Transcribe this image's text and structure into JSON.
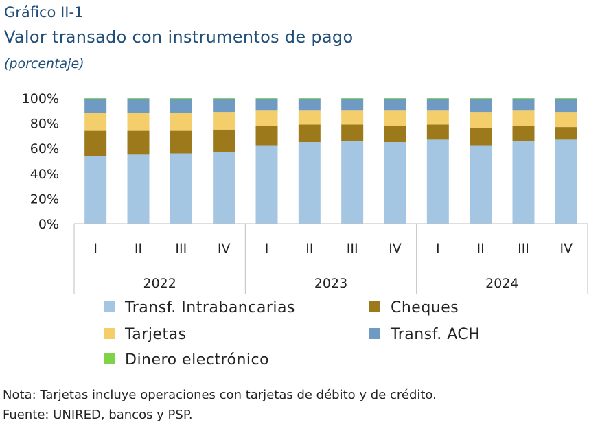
{
  "header": {
    "label": "Gráfico II-1",
    "title": "Valor transado con instrumentos de pago",
    "subtitle": "(porcentaje)"
  },
  "notes": {
    "note": "Nota: Tarjetas incluye operaciones con tarjetas de débito y de crédito.",
    "source": "Fuente: UNIRED, bancos y PSP."
  },
  "chart_data": {
    "type": "bar",
    "stacked": true,
    "categories": [
      "I",
      "II",
      "III",
      "IV",
      "I",
      "II",
      "III",
      "IV",
      "I",
      "II",
      "III",
      "IV"
    ],
    "groups": [
      {
        "label": "2022",
        "count": 4
      },
      {
        "label": "2023",
        "count": 4
      },
      {
        "label": "2024",
        "count": 4
      }
    ],
    "y_ticks": [
      "0%",
      "20%",
      "40%",
      "60%",
      "80%",
      "100%"
    ],
    "ylim": [
      0,
      100
    ],
    "series": [
      {
        "name": "Transf. Intrabancarias",
        "color": "#a4c6e2",
        "values": [
          54,
          55,
          56,
          57,
          62,
          65,
          66,
          65,
          67,
          62,
          66,
          67
        ]
      },
      {
        "name": "Cheques",
        "color": "#9c7a1c",
        "values": [
          20,
          19,
          18,
          18,
          16,
          14,
          13,
          13,
          12,
          14,
          12,
          10
        ]
      },
      {
        "name": "Tarjetas",
        "color": "#f4ce6a",
        "values": [
          14,
          14,
          14,
          14,
          12,
          11,
          11,
          12,
          11,
          13,
          12,
          12
        ]
      },
      {
        "name": "Transf. ACH",
        "color": "#6f9ac3",
        "values": [
          11.5,
          11.5,
          11.5,
          10.5,
          9.5,
          9.5,
          9.5,
          9.5,
          9.5,
          10.5,
          9.5,
          10.5
        ]
      },
      {
        "name": "Dinero electrónico",
        "color": "#7ed348",
        "values": [
          0.5,
          0.5,
          0.5,
          0.5,
          0.5,
          0.5,
          0.5,
          0.5,
          0.5,
          0.5,
          0.5,
          0.5
        ]
      }
    ],
    "legend_order": [
      "Transf. Intrabancarias",
      "Cheques",
      "Tarjetas",
      "Transf. ACH",
      "Dinero electrónico"
    ],
    "legend_position": "bottom",
    "grid": false
  }
}
